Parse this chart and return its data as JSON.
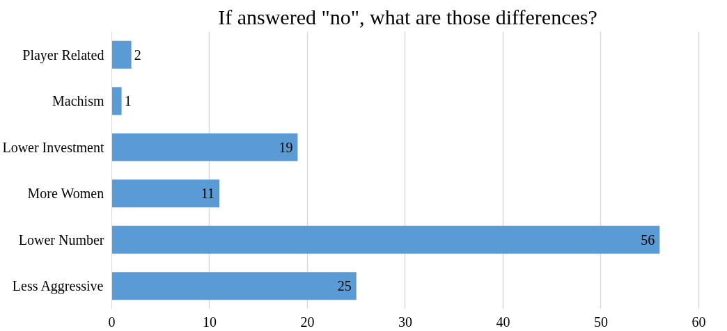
{
  "chart_data": {
    "type": "bar",
    "orientation": "horizontal",
    "title": "If answered \"no\", what are those differences?",
    "categories": [
      "Player Related",
      "Machism",
      "Lower Investment",
      "More Women",
      "Lower Number",
      "Less Aggressive"
    ],
    "values": [
      2,
      1,
      19,
      11,
      56,
      25
    ],
    "color": "#5b9bd5",
    "xlim": [
      0,
      60
    ],
    "xticks": [
      0,
      10,
      20,
      30,
      40,
      50,
      60
    ],
    "grid": "x",
    "data_labels": true
  }
}
